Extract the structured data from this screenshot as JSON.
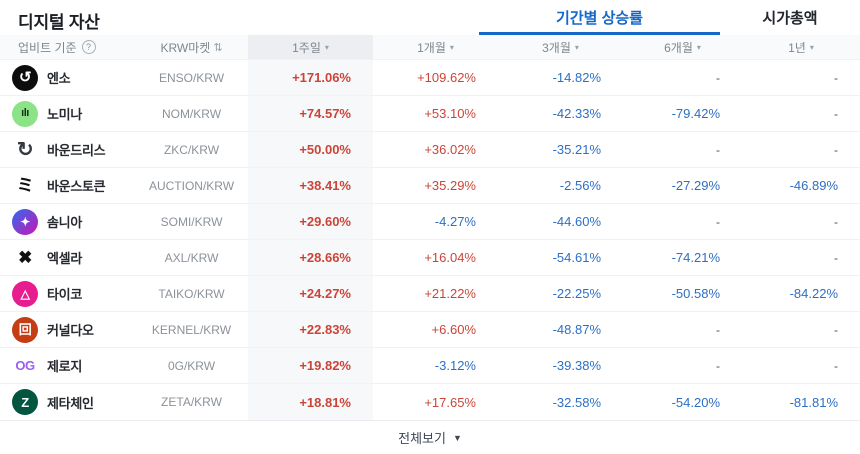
{
  "page": {
    "title": "디지털 자산",
    "tabs": [
      {
        "label": "기간별 상승률",
        "active": true
      },
      {
        "label": "시가총액",
        "active": false
      }
    ],
    "footer": {
      "view_all_label": "전체보기"
    }
  },
  "icons": {
    "chevron_down": "▾",
    "help": "?",
    "sort": "⇅",
    "footer_chevron": "▼"
  },
  "colors": {
    "up": "#cc4438",
    "down": "#2d6fc4",
    "accent": "#1567c8",
    "selected_column_bg": "#f7f8fa"
  },
  "table": {
    "header": {
      "base": "업비트 기준",
      "market": "KRW마켓",
      "periods": [
        "1주일",
        "1개월",
        "3개월",
        "6개월",
        "1년"
      ]
    },
    "period_keys": [
      "1w",
      "1m",
      "3m",
      "6m",
      "1y"
    ],
    "rows": [
      {
        "name": "엔소",
        "pair": "ENSO/KRW",
        "icon": {
          "name": "enso-coin-icon",
          "glyph": "↺",
          "bg": "#0d0d0d",
          "fg": "#ffffff",
          "size": 15
        },
        "values": [
          "+171.06%",
          "+109.62%",
          "-14.82%",
          "-",
          "-"
        ]
      },
      {
        "name": "노미나",
        "pair": "NOM/KRW",
        "icon": {
          "name": "nomina-coin-icon",
          "glyph": "ılı",
          "bg": "#8be287",
          "fg": "#173018",
          "size": 11
        },
        "values": [
          "+74.57%",
          "+53.10%",
          "-42.33%",
          "-79.42%",
          "-"
        ]
      },
      {
        "name": "바운드리스",
        "pair": "ZKC/KRW",
        "icon": {
          "name": "boundless-coin-icon",
          "glyph": "↻",
          "bg": "transparent",
          "fg": "#343a41",
          "size": 20
        },
        "values": [
          "+50.00%",
          "+36.02%",
          "-35.21%",
          "-",
          "-"
        ]
      },
      {
        "name": "바운스토큰",
        "pair": "AUCTION/KRW",
        "icon": {
          "name": "bounce-token-coin-icon",
          "glyph": "ミ",
          "bg": "transparent",
          "fg": "#101010",
          "size": 17
        },
        "values": [
          "+38.41%",
          "+35.29%",
          "-2.56%",
          "-27.29%",
          "-46.89%"
        ]
      },
      {
        "name": "솜니아",
        "pair": "SOMI/KRW",
        "icon": {
          "name": "somnia-coin-icon",
          "glyph": "✦",
          "bg": "linear-gradient(135deg,#2f6bee,#cb15b4)",
          "fg": "#ffffff",
          "size": 12
        },
        "values": [
          "+29.60%",
          "-4.27%",
          "-44.60%",
          "-",
          "-"
        ]
      },
      {
        "name": "엑셀라",
        "pair": "AXL/KRW",
        "icon": {
          "name": "axelar-coin-icon",
          "glyph": "✖",
          "bg": "transparent",
          "fg": "#101010",
          "size": 17
        },
        "values": [
          "+28.66%",
          "+16.04%",
          "-54.61%",
          "-74.21%",
          "-"
        ]
      },
      {
        "name": "타이코",
        "pair": "TAIKO/KRW",
        "icon": {
          "name": "taiko-coin-icon",
          "glyph": "△",
          "bg": "#e71d8f",
          "fg": "#ffffff",
          "size": 12
        },
        "values": [
          "+24.27%",
          "+21.22%",
          "-22.25%",
          "-50.58%",
          "-84.22%"
        ]
      },
      {
        "name": "커널다오",
        "pair": "KERNEL/KRW",
        "icon": {
          "name": "kerneldao-coin-icon",
          "glyph": "回",
          "bg": "#c53d14",
          "fg": "#ffffff",
          "size": 13
        },
        "values": [
          "+22.83%",
          "+6.60%",
          "-48.87%",
          "-",
          "-"
        ]
      },
      {
        "name": "제로지",
        "pair": "0G/KRW",
        "icon": {
          "name": "zerog-coin-icon",
          "glyph": "OG",
          "bg": "transparent",
          "fg": "#9a5ff2",
          "size": 13
        },
        "values": [
          "+19.82%",
          "-3.12%",
          "-39.38%",
          "-",
          "-"
        ]
      },
      {
        "name": "제타체인",
        "pair": "ZETA/KRW",
        "icon": {
          "name": "zetachain-coin-icon",
          "glyph": "Z",
          "bg": "#02563f",
          "fg": "#ffffff",
          "size": 13
        },
        "values": [
          "+18.81%",
          "+17.65%",
          "-32.58%",
          "-54.20%",
          "-81.81%"
        ]
      }
    ]
  }
}
